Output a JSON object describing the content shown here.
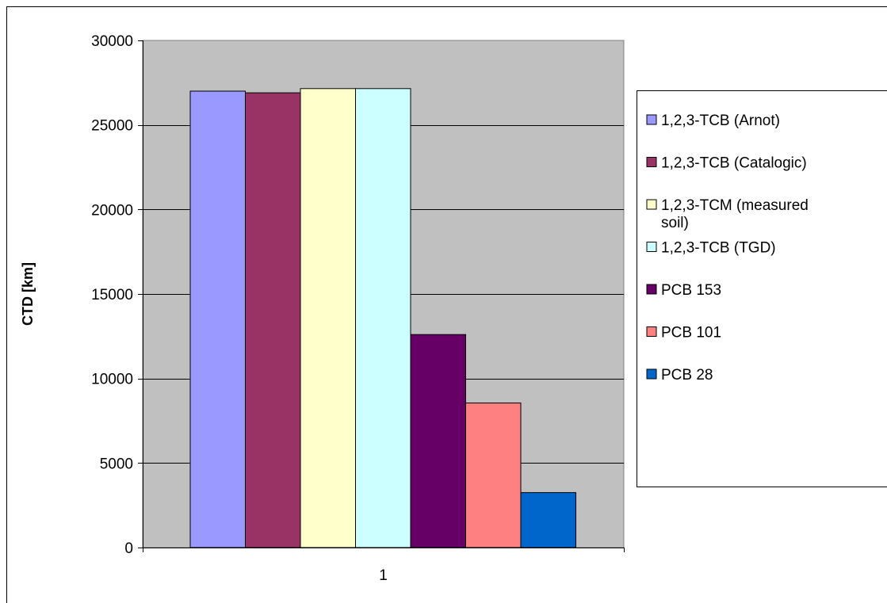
{
  "chart_data": {
    "type": "bar",
    "categories": [
      "1"
    ],
    "series": [
      {
        "name": "1,2,3-TCB (Arnot)",
        "values": [
          27000
        ],
        "color": "#9999FF"
      },
      {
        "name": "1,2,3-TCB (Catalogic)",
        "values": [
          26900
        ],
        "color": "#993366"
      },
      {
        "name": "1,2,3-TCM (measured soil)",
        "values": [
          27150
        ],
        "color": "#FFFFCC"
      },
      {
        "name": "1,2,3-TCB (TGD)",
        "values": [
          27150
        ],
        "color": "#CCFFFF"
      },
      {
        "name": "PCB 153",
        "values": [
          12600
        ],
        "color": "#660066"
      },
      {
        "name": "PCB 101",
        "values": [
          8550
        ],
        "color": "#FF8080"
      },
      {
        "name": "PCB 28",
        "values": [
          3250
        ],
        "color": "#0066CC"
      }
    ],
    "ylabel": "CTD [km]",
    "xlabel": "",
    "ylim": [
      0,
      30000
    ],
    "yticks": [
      0,
      5000,
      10000,
      15000,
      20000,
      25000,
      30000
    ],
    "grid": true,
    "plot_background": "#C0C0C0",
    "legend_position": "right"
  }
}
